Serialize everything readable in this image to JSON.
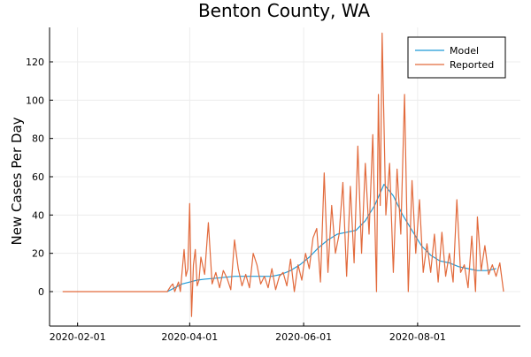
{
  "chart_data": {
    "type": "line",
    "title": "Benton County, WA",
    "xlabel": "",
    "ylabel": "New Cases Per Day",
    "x_axis": {
      "type": "date",
      "range": [
        "2020-01-17",
        "2020-09-25"
      ],
      "ticks": [
        "2020-02-01",
        "2020-04-01",
        "2020-06-01",
        "2020-08-01"
      ]
    },
    "y_axis": {
      "range": [
        -18,
        138
      ],
      "ticks": [
        0,
        20,
        40,
        60,
        80,
        100,
        120
      ]
    },
    "grid": true,
    "legend": {
      "position": "top-right",
      "entries": [
        "Model",
        "Reported"
      ]
    },
    "colors": {
      "model": "#1f9bd8",
      "reported": "#e26a3c"
    },
    "series": [
      {
        "name": "Model",
        "color": "#1f9bd8",
        "points": [
          [
            "2020-03-20",
            0
          ],
          [
            "2020-03-24",
            2
          ],
          [
            "2020-03-28",
            4
          ],
          [
            "2020-04-01",
            5
          ],
          [
            "2020-04-05",
            6
          ],
          [
            "2020-04-09",
            6.5
          ],
          [
            "2020-04-15",
            7
          ],
          [
            "2020-04-25",
            8
          ],
          [
            "2020-05-05",
            8
          ],
          [
            "2020-05-15",
            8
          ],
          [
            "2020-05-20",
            9
          ],
          [
            "2020-05-25",
            11
          ],
          [
            "2020-05-30",
            14
          ],
          [
            "2020-06-04",
            18
          ],
          [
            "2020-06-09",
            23
          ],
          [
            "2020-06-14",
            27
          ],
          [
            "2020-06-19",
            30
          ],
          [
            "2020-06-24",
            31
          ],
          [
            "2020-06-29",
            32
          ],
          [
            "2020-07-04",
            37
          ],
          [
            "2020-07-09",
            45
          ],
          [
            "2020-07-14",
            56
          ],
          [
            "2020-07-19",
            50
          ],
          [
            "2020-07-24",
            40
          ],
          [
            "2020-07-29",
            32
          ],
          [
            "2020-08-03",
            24
          ],
          [
            "2020-08-08",
            19
          ],
          [
            "2020-08-13",
            16
          ],
          [
            "2020-08-18",
            15
          ],
          [
            "2020-08-23",
            13
          ],
          [
            "2020-08-28",
            12
          ],
          [
            "2020-09-02",
            11
          ],
          [
            "2020-09-07",
            11
          ],
          [
            "2020-09-12",
            12
          ]
        ]
      },
      {
        "name": "Reported",
        "color": "#e26a3c",
        "points": [
          [
            "2020-01-24",
            0
          ],
          [
            "2020-03-20",
            0
          ],
          [
            "2020-03-22",
            3
          ],
          [
            "2020-03-23",
            4
          ],
          [
            "2020-03-24",
            0
          ],
          [
            "2020-03-26",
            5
          ],
          [
            "2020-03-27",
            0
          ],
          [
            "2020-03-29",
            22
          ],
          [
            "2020-03-30",
            8
          ],
          [
            "2020-03-31",
            12
          ],
          [
            "2020-04-01",
            46
          ],
          [
            "2020-04-02",
            -13
          ],
          [
            "2020-04-03",
            14
          ],
          [
            "2020-04-04",
            22
          ],
          [
            "2020-04-05",
            3
          ],
          [
            "2020-04-06",
            6
          ],
          [
            "2020-04-07",
            18
          ],
          [
            "2020-04-09",
            9
          ],
          [
            "2020-04-11",
            36
          ],
          [
            "2020-04-13",
            4
          ],
          [
            "2020-04-15",
            10
          ],
          [
            "2020-04-17",
            2
          ],
          [
            "2020-04-19",
            11
          ],
          [
            "2020-04-21",
            7
          ],
          [
            "2020-04-23",
            1
          ],
          [
            "2020-04-25",
            27
          ],
          [
            "2020-04-27",
            12
          ],
          [
            "2020-04-29",
            3
          ],
          [
            "2020-05-01",
            9
          ],
          [
            "2020-05-03",
            2
          ],
          [
            "2020-05-05",
            20
          ],
          [
            "2020-05-07",
            14
          ],
          [
            "2020-05-09",
            4
          ],
          [
            "2020-05-11",
            8
          ],
          [
            "2020-05-13",
            2
          ],
          [
            "2020-05-15",
            12
          ],
          [
            "2020-05-17",
            1
          ],
          [
            "2020-05-19",
            8
          ],
          [
            "2020-05-21",
            10
          ],
          [
            "2020-05-23",
            3
          ],
          [
            "2020-05-25",
            17
          ],
          [
            "2020-05-27",
            0
          ],
          [
            "2020-05-29",
            14
          ],
          [
            "2020-05-31",
            6
          ],
          [
            "2020-06-02",
            20
          ],
          [
            "2020-06-04",
            12
          ],
          [
            "2020-06-06",
            28
          ],
          [
            "2020-06-08",
            33
          ],
          [
            "2020-06-10",
            5
          ],
          [
            "2020-06-12",
            62
          ],
          [
            "2020-06-14",
            10
          ],
          [
            "2020-06-16",
            45
          ],
          [
            "2020-06-18",
            20
          ],
          [
            "2020-06-20",
            30
          ],
          [
            "2020-06-22",
            57
          ],
          [
            "2020-06-24",
            8
          ],
          [
            "2020-06-26",
            55
          ],
          [
            "2020-06-28",
            15
          ],
          [
            "2020-06-30",
            76
          ],
          [
            "2020-07-02",
            20
          ],
          [
            "2020-07-04",
            67
          ],
          [
            "2020-07-06",
            30
          ],
          [
            "2020-07-08",
            82
          ],
          [
            "2020-07-10",
            0
          ],
          [
            "2020-07-11",
            103
          ],
          [
            "2020-07-12",
            45
          ],
          [
            "2020-07-13",
            135
          ],
          [
            "2020-07-15",
            40
          ],
          [
            "2020-07-17",
            67
          ],
          [
            "2020-07-19",
            10
          ],
          [
            "2020-07-21",
            64
          ],
          [
            "2020-07-23",
            30
          ],
          [
            "2020-07-25",
            103
          ],
          [
            "2020-07-27",
            0
          ],
          [
            "2020-07-29",
            58
          ],
          [
            "2020-07-31",
            20
          ],
          [
            "2020-08-02",
            48
          ],
          [
            "2020-08-04",
            10
          ],
          [
            "2020-08-06",
            25
          ],
          [
            "2020-08-08",
            10
          ],
          [
            "2020-08-10",
            30
          ],
          [
            "2020-08-12",
            5
          ],
          [
            "2020-08-14",
            31
          ],
          [
            "2020-08-16",
            8
          ],
          [
            "2020-08-18",
            20
          ],
          [
            "2020-08-20",
            5
          ],
          [
            "2020-08-22",
            48
          ],
          [
            "2020-08-24",
            10
          ],
          [
            "2020-08-26",
            14
          ],
          [
            "2020-08-28",
            2
          ],
          [
            "2020-08-30",
            29
          ],
          [
            "2020-09-01",
            0
          ],
          [
            "2020-09-02",
            39
          ],
          [
            "2020-09-04",
            11
          ],
          [
            "2020-09-06",
            24
          ],
          [
            "2020-09-08",
            9
          ],
          [
            "2020-09-10",
            14
          ],
          [
            "2020-09-12",
            8
          ],
          [
            "2020-09-14",
            15
          ],
          [
            "2020-09-16",
            0
          ]
        ]
      }
    ]
  }
}
